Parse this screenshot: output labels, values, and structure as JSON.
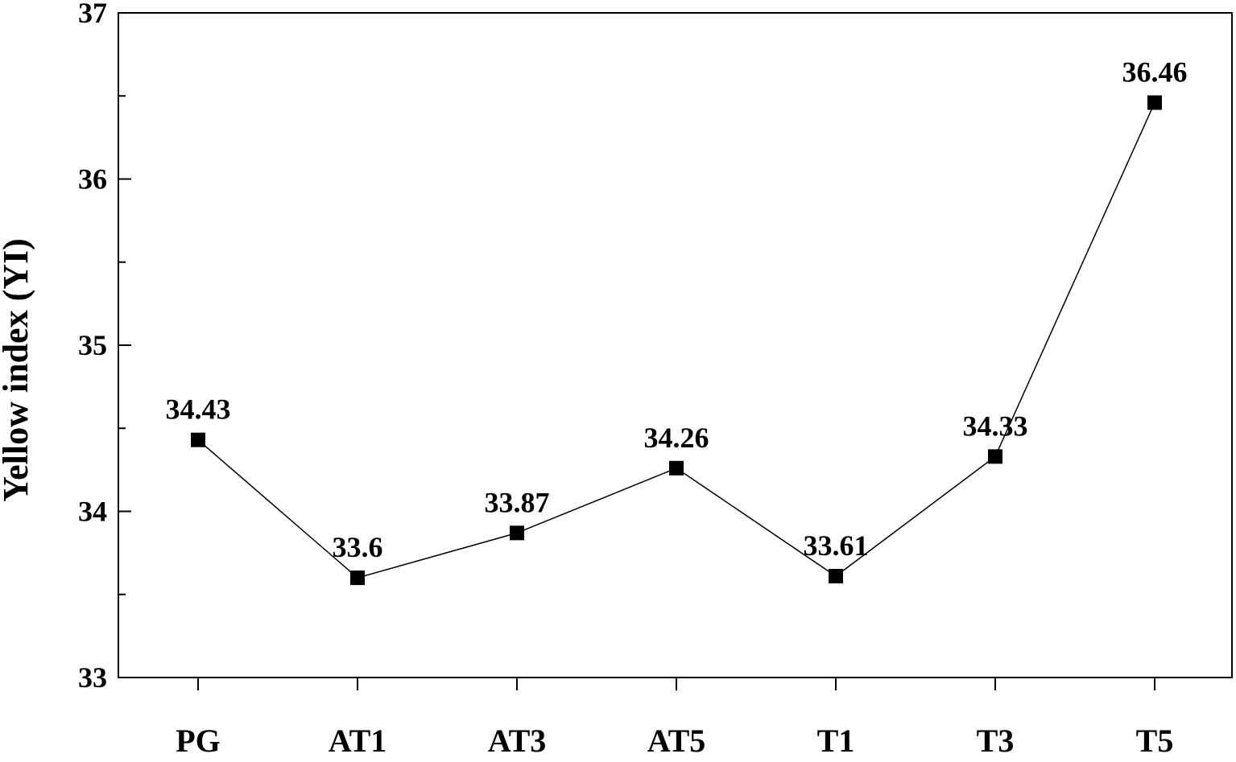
{
  "chart_data": {
    "type": "line",
    "title": "",
    "xlabel": "",
    "ylabel": "Yellow index (YI)",
    "categories": [
      "PG",
      "AT1",
      "AT3",
      "AT5",
      "T1",
      "T3",
      "T5"
    ],
    "series": [
      {
        "values": [
          34.43,
          33.6,
          33.87,
          34.26,
          33.61,
          34.33,
          36.46
        ],
        "labels": [
          "34.43",
          "33.6",
          "33.87",
          "34.26",
          "33.61",
          "34.33",
          "36.46"
        ]
      }
    ],
    "ylim": [
      33,
      37
    ],
    "yticks": [
      "33",
      "34",
      "35",
      "36",
      "37"
    ],
    "grid": false,
    "marker": "square",
    "line_color": "#000000",
    "marker_color": "#000000"
  }
}
